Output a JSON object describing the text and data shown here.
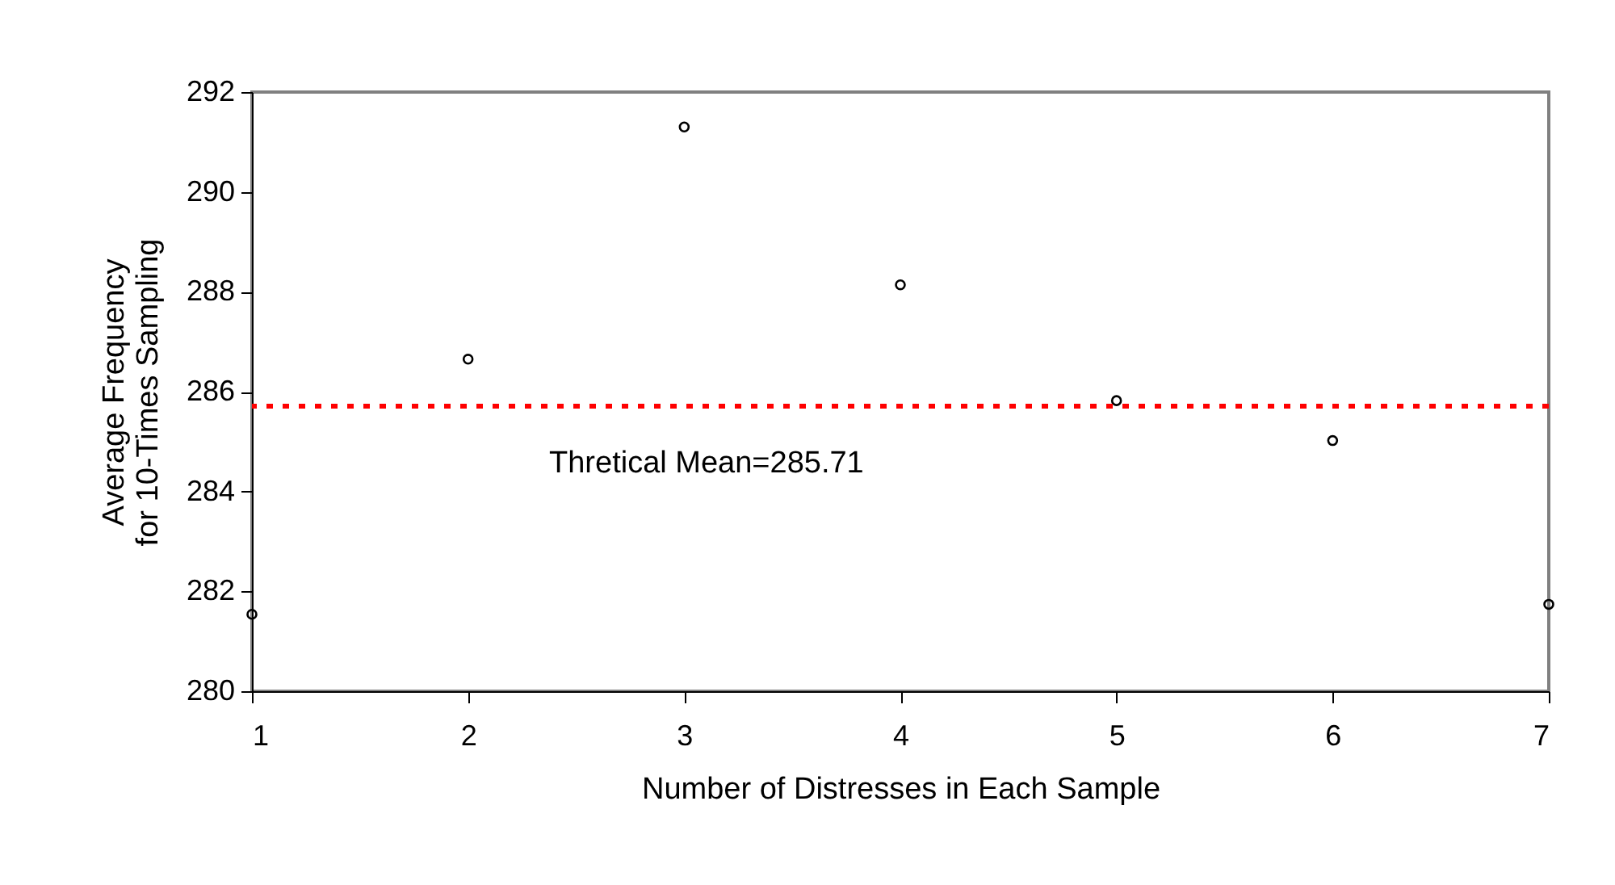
{
  "chart_data": {
    "type": "scatter",
    "xlabel": "Number of Distresses in Each Sample",
    "ylabel": "Average Frequency\nfor 10-Times Sampling",
    "x": [
      1,
      2,
      3,
      4,
      5,
      6,
      7
    ],
    "series": [
      {
        "color": "#000000",
        "values": [
          281.54,
          286.65,
          291.3,
          288.14,
          285.82,
          285.02,
          281.74
        ]
      }
    ],
    "marker": "circle",
    "xlim": [
      1,
      7
    ],
    "xticks": [
      1,
      2,
      3,
      4,
      5,
      6,
      7
    ],
    "ylim": [
      280,
      292
    ],
    "yticks": [
      280,
      282,
      284,
      286,
      288,
      290,
      292
    ],
    "ref_lines": [
      {
        "axis": "y",
        "value": 285.71,
        "label": "Thretical Mean=285.71",
        "color": "#ff0000",
        "line_style": "dotted"
      }
    ],
    "grid": false
  }
}
